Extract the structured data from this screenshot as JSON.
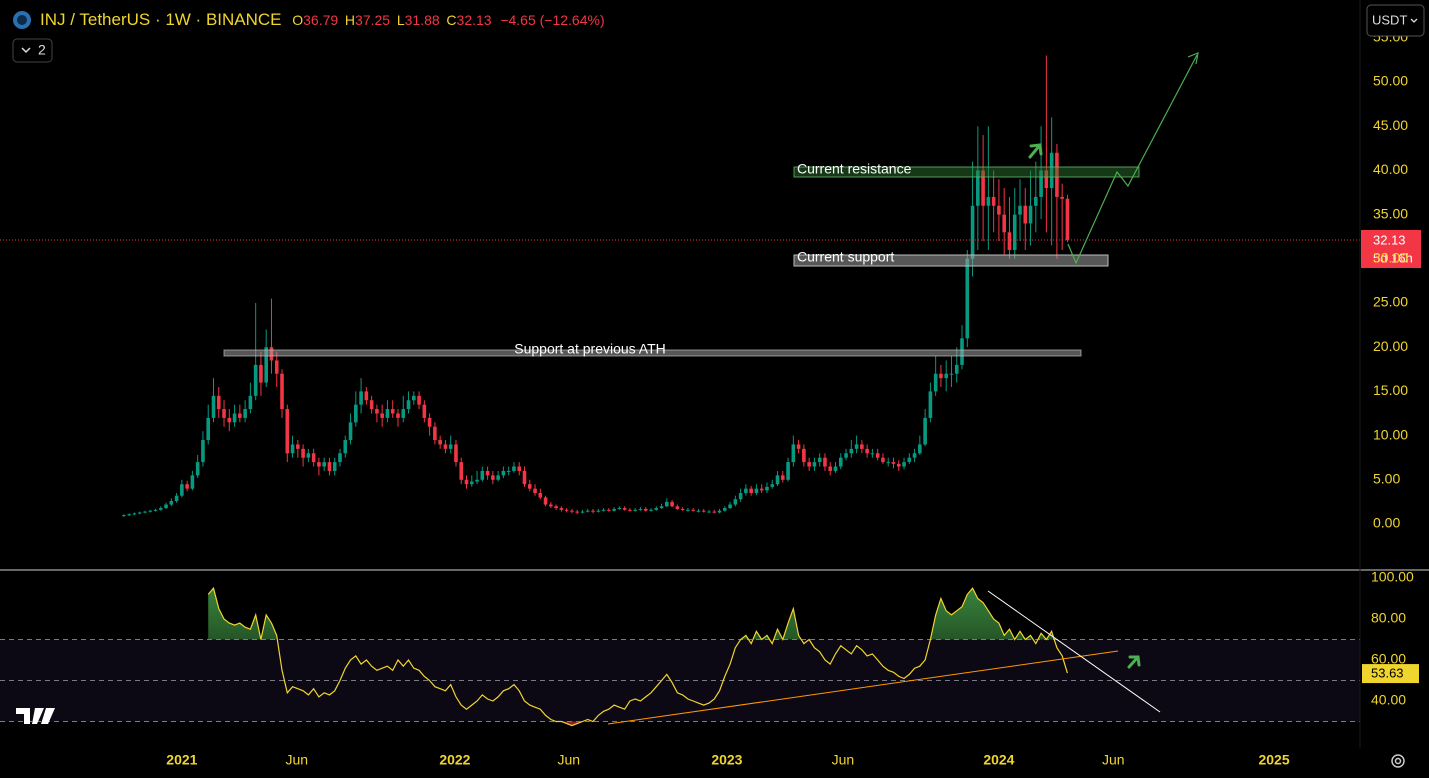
{
  "chart_data": {
    "type": "candlestick",
    "title": "INJ / TetherUS · 1W · BINANCE",
    "ohlc_prefixes": [
      "O",
      "H",
      "L",
      "C"
    ],
    "change_label": "−4.65 (−12.64%)",
    "currency": "USDT",
    "indicator_count": "2",
    "countdown": "5d 16h",
    "up_color": "#089981",
    "down_color": "#f23645",
    "xlim": [
      -23.5,
      234.5
    ],
    "xticks": [
      {
        "value": 11.0,
        "label": "2021"
      },
      {
        "value": 32.8,
        "label": "Jun"
      },
      {
        "value": 62.8,
        "label": "2022"
      },
      {
        "value": 84.4,
        "label": "Jun"
      },
      {
        "value": 114.4,
        "label": "2023"
      },
      {
        "value": 136.4,
        "label": "Jun"
      },
      {
        "value": 166.0,
        "label": "2024"
      },
      {
        "value": 187.7,
        "label": "Jun"
      },
      {
        "value": 218.2,
        "label": "2025"
      }
    ],
    "ylim": [
      -4.98,
      59.28
    ],
    "yticks": [
      {
        "value": 0,
        "label": "0.00"
      },
      {
        "value": 5,
        "label": "5.00"
      },
      {
        "value": 10,
        "label": "10.00"
      },
      {
        "value": 15,
        "label": "15.00"
      },
      {
        "value": 20,
        "label": "20.00"
      },
      {
        "value": 25,
        "label": "25.00"
      },
      {
        "value": 30,
        "label": "30.00"
      },
      {
        "value": 35,
        "label": "35.00"
      },
      {
        "value": 40,
        "label": "40.00"
      },
      {
        "value": 45,
        "label": "45.00"
      },
      {
        "value": 50,
        "label": "50.00"
      },
      {
        "value": 55,
        "label": "55.00"
      }
    ],
    "open": [
      0.9,
      1.0,
      1.1,
      1.2,
      1.3,
      1.4,
      1.5,
      1.6,
      1.8,
      2.2,
      2.6,
      3.2,
      4.5,
      4.0,
      5.5,
      7.0,
      9.5,
      12.0,
      14.5,
      13.0,
      12.0,
      11.5,
      12.5,
      12.0,
      13.0,
      14.5,
      18.0,
      16.0,
      20.0,
      18.5,
      17.0,
      13.0,
      8.0,
      9.0,
      8.5,
      7.5,
      8.0,
      7.0,
      6.5,
      7.0,
      6.0,
      7.0,
      8.0,
      9.5,
      11.5,
      13.5,
      15.0,
      14.0,
      13.0,
      12.5,
      12.0,
      13.0,
      12.5,
      12.0,
      13.0,
      14.0,
      14.5,
      13.5,
      12.0,
      11.0,
      9.5,
      9.0,
      8.5,
      9.0,
      7.0,
      5.0,
      4.5,
      4.8,
      5.0,
      6.0,
      5.5,
      5.0,
      5.5,
      6.0,
      6.0,
      6.5,
      6.0,
      4.5,
      4.0,
      3.5,
      3.0,
      2.2,
      2.0,
      1.8,
      1.6,
      1.5,
      1.4,
      1.3,
      1.4,
      1.5,
      1.4,
      1.5,
      1.6,
      1.5,
      1.7,
      1.8,
      1.6,
      1.5,
      1.6,
      1.7,
      1.5,
      1.6,
      1.8,
      2.0,
      2.5,
      2.0,
      1.7,
      1.6,
      1.6,
      1.5,
      1.5,
      1.4,
      1.4,
      1.3,
      1.5,
      1.8,
      2.2,
      2.8,
      3.5,
      4.0,
      3.5,
      4.0,
      3.8,
      4.2,
      4.5,
      5.5,
      5.0,
      7.0,
      9.0,
      8.5,
      7.0,
      6.5,
      7.0,
      7.5,
      6.5,
      6.0,
      6.5,
      7.5,
      8.0,
      8.5,
      9.0,
      8.5,
      8.0,
      8.0,
      7.5,
      7.0,
      7.0,
      6.8,
      6.5,
      7.0,
      7.5,
      8.0,
      9.0,
      12.0,
      15.0,
      17.0,
      16.5,
      17.0,
      17.0,
      18.0,
      21.0,
      30.0,
      36.0,
      40.0,
      36.0,
      37.0,
      36.0,
      35.0,
      33.0,
      31.0,
      35.0,
      36.0,
      34.0,
      36.0,
      37.0,
      40.0,
      38.0,
      42.0,
      37.0,
      36.79
    ],
    "high": [
      1.1,
      1.2,
      1.3,
      1.4,
      1.5,
      1.6,
      1.7,
      2.0,
      2.4,
      2.9,
      3.5,
      5.0,
      4.9,
      6.0,
      7.8,
      10.5,
      13.5,
      16.5,
      15.5,
      14.0,
      13.0,
      13.5,
      13.5,
      14.0,
      16.0,
      25.0,
      19.5,
      22.0,
      25.5,
      19.5,
      17.5,
      13.5,
      10.0,
      9.5,
      9.0,
      8.5,
      8.5,
      7.5,
      7.5,
      7.5,
      7.5,
      8.5,
      10.0,
      12.5,
      15.0,
      16.5,
      15.5,
      14.5,
      13.5,
      13.5,
      14.0,
      14.0,
      13.0,
      14.5,
      15.0,
      15.0,
      15.0,
      14.0,
      12.5,
      11.5,
      10.0,
      9.5,
      10.0,
      9.5,
      7.5,
      5.5,
      5.5,
      6.0,
      6.5,
      6.5,
      6.0,
      6.0,
      6.5,
      6.5,
      7.0,
      7.0,
      6.5,
      5.0,
      4.5,
      4.0,
      3.2,
      2.5,
      2.2,
      2.0,
      1.8,
      1.7,
      1.6,
      1.6,
      1.7,
      1.7,
      1.7,
      1.8,
      1.8,
      1.9,
      2.0,
      2.0,
      1.8,
      1.8,
      1.9,
      1.9,
      1.8,
      2.0,
      2.3,
      2.9,
      2.7,
      2.2,
      1.9,
      1.8,
      1.8,
      1.7,
      1.7,
      1.6,
      1.6,
      1.7,
      2.0,
      2.5,
      3.2,
      4.0,
      4.5,
      4.3,
      4.5,
      4.5,
      4.7,
      5.0,
      6.0,
      6.0,
      7.5,
      10.0,
      9.5,
      9.0,
      7.5,
      7.5,
      8.0,
      8.0,
      7.0,
      7.0,
      8.0,
      8.5,
      9.5,
      10.0,
      9.5,
      9.0,
      8.5,
      8.5,
      8.0,
      7.5,
      7.5,
      7.2,
      7.5,
      8.0,
      8.5,
      10.0,
      13.0,
      16.0,
      19.0,
      18.0,
      18.5,
      19.0,
      20.0,
      22.5,
      31.0,
      41.0,
      45.0,
      44.0,
      45.0,
      40.0,
      39.0,
      38.0,
      37.0,
      38.0,
      39.0,
      38.0,
      40.0,
      41.0,
      45.0,
      53.0,
      46.0,
      43.0,
      38.5,
      37.25
    ],
    "low": [
      0.8,
      0.9,
      1.0,
      1.1,
      1.2,
      1.3,
      1.4,
      1.5,
      1.7,
      2.0,
      2.4,
      3.0,
      3.7,
      3.8,
      5.2,
      6.5,
      9.0,
      11.5,
      12.0,
      11.0,
      10.5,
      11.0,
      11.5,
      11.5,
      12.5,
      14.0,
      14.5,
      15.5,
      17.0,
      15.5,
      12.0,
      7.0,
      7.5,
      7.5,
      6.5,
      7.0,
      6.5,
      5.5,
      6.0,
      5.5,
      5.5,
      6.5,
      7.5,
      9.0,
      11.0,
      12.5,
      13.5,
      12.5,
      11.5,
      11.0,
      11.5,
      12.0,
      11.0,
      11.5,
      12.5,
      13.5,
      13.0,
      11.5,
      10.0,
      9.0,
      8.5,
      8.0,
      8.0,
      6.5,
      4.5,
      4.0,
      4.2,
      4.5,
      4.8,
      5.0,
      4.5,
      4.8,
      5.2,
      5.5,
      5.8,
      5.5,
      4.2,
      3.7,
      3.2,
      2.8,
      2.0,
      1.8,
      1.6,
      1.4,
      1.3,
      1.2,
      1.1,
      1.2,
      1.3,
      1.2,
      1.3,
      1.4,
      1.4,
      1.4,
      1.6,
      1.5,
      1.4,
      1.4,
      1.5,
      1.4,
      1.4,
      1.5,
      1.7,
      1.9,
      1.9,
      1.6,
      1.5,
      1.4,
      1.4,
      1.3,
      1.3,
      1.3,
      1.2,
      1.2,
      1.4,
      1.7,
      2.0,
      2.5,
      3.2,
      3.2,
      3.3,
      3.5,
      3.5,
      4.0,
      4.3,
      4.7,
      4.8,
      6.5,
      8.0,
      6.5,
      6.0,
      6.0,
      6.5,
      6.0,
      5.5,
      5.8,
      6.2,
      7.2,
      7.5,
      8.0,
      8.0,
      7.5,
      7.5,
      7.2,
      6.8,
      6.5,
      6.3,
      6.0,
      6.2,
      6.8,
      7.0,
      7.8,
      8.8,
      11.5,
      14.5,
      15.5,
      15.0,
      15.5,
      16.0,
      17.5,
      20.0,
      28.0,
      31.0,
      32.0,
      31.0,
      33.0,
      32.0,
      30.5,
      30.0,
      30.0,
      32.0,
      31.0,
      31.5,
      33.0,
      34.5,
      33.0,
      31.5,
      30.0,
      31.0,
      31.88
    ],
    "close": [
      1.0,
      1.1,
      1.2,
      1.3,
      1.4,
      1.5,
      1.6,
      1.8,
      2.2,
      2.6,
      3.2,
      4.5,
      4.0,
      5.5,
      7.0,
      9.5,
      12.0,
      14.5,
      13.0,
      12.0,
      11.5,
      12.5,
      12.0,
      13.0,
      14.5,
      18.0,
      16.0,
      20.0,
      18.5,
      17.0,
      13.0,
      8.0,
      9.0,
      8.5,
      7.5,
      8.0,
      7.0,
      6.5,
      7.0,
      6.0,
      7.0,
      8.0,
      9.5,
      11.5,
      13.5,
      15.0,
      14.0,
      13.0,
      12.5,
      12.0,
      13.0,
      12.5,
      12.0,
      13.0,
      14.0,
      14.5,
      13.5,
      12.0,
      11.0,
      9.5,
      9.0,
      8.5,
      9.0,
      7.0,
      5.0,
      4.5,
      4.8,
      5.0,
      6.0,
      5.5,
      5.0,
      5.5,
      6.0,
      6.0,
      6.5,
      6.0,
      4.5,
      4.0,
      3.5,
      3.0,
      2.2,
      2.0,
      1.8,
      1.6,
      1.5,
      1.4,
      1.3,
      1.4,
      1.5,
      1.4,
      1.5,
      1.6,
      1.5,
      1.7,
      1.8,
      1.6,
      1.5,
      1.6,
      1.7,
      1.5,
      1.6,
      1.8,
      2.0,
      2.5,
      2.0,
      1.7,
      1.6,
      1.6,
      1.5,
      1.5,
      1.4,
      1.4,
      1.3,
      1.5,
      1.8,
      2.2,
      2.8,
      3.5,
      4.0,
      3.5,
      4.0,
      3.8,
      4.2,
      4.5,
      5.5,
      5.0,
      7.0,
      9.0,
      8.5,
      7.0,
      6.5,
      7.0,
      7.5,
      6.5,
      6.0,
      6.5,
      7.5,
      8.0,
      8.5,
      9.0,
      8.5,
      8.0,
      8.0,
      7.5,
      7.0,
      7.0,
      6.8,
      6.5,
      7.0,
      7.5,
      8.0,
      9.0,
      12.0,
      15.0,
      17.0,
      16.5,
      17.0,
      17.0,
      18.0,
      21.0,
      30.0,
      36.0,
      40.0,
      36.0,
      37.0,
      36.0,
      35.0,
      33.0,
      31.0,
      35.0,
      36.0,
      34.0,
      36.0,
      37.0,
      40.0,
      38.0,
      42.0,
      37.0,
      36.79,
      32.13
    ],
    "annotations": [
      {
        "text": "Current resistance"
      },
      {
        "text": "Current support"
      },
      {
        "text": "Support at previous ATH"
      }
    ],
    "rsi": {
      "color": "#f0d52f",
      "ylim": [
        17.1,
        103.4
      ],
      "yticks": [
        {
          "value": 40,
          "label": "40.00"
        },
        {
          "value": 60,
          "label": "60.00"
        },
        {
          "value": 80,
          "label": "80.00"
        },
        {
          "value": 100,
          "label": "100.00"
        }
      ],
      "levels": [
        70,
        50,
        30
      ],
      "value_label": "53.63",
      "values": [
        null,
        null,
        null,
        null,
        null,
        null,
        null,
        null,
        null,
        null,
        null,
        null,
        null,
        null,
        null,
        null,
        92,
        95,
        85,
        80,
        78,
        77,
        78,
        76,
        75,
        82,
        70,
        82,
        78,
        72,
        55,
        44,
        47,
        46,
        45,
        43,
        46,
        42,
        44,
        43,
        45,
        50,
        56,
        60,
        62,
        58,
        60,
        57,
        55,
        56,
        57,
        55,
        60,
        57,
        60,
        56,
        55,
        52,
        50,
        47,
        46,
        45,
        48,
        42,
        38,
        36,
        38,
        40,
        43,
        41,
        40,
        42,
        45,
        46,
        48,
        45,
        40,
        38,
        37,
        36,
        33,
        31,
        30,
        30,
        29,
        28,
        29,
        30,
        31,
        30,
        33,
        35,
        36,
        38,
        37,
        36,
        40,
        41,
        40,
        42,
        44,
        47,
        50,
        53,
        49,
        44,
        43,
        41,
        40,
        39,
        38,
        39,
        41,
        45,
        52,
        58,
        66,
        70,
        72,
        68,
        74,
        70,
        72,
        68,
        75,
        70,
        78,
        85,
        72,
        68,
        70,
        66,
        64,
        60,
        58,
        63,
        67,
        65,
        63,
        67,
        65,
        62,
        63,
        60,
        57,
        55,
        54,
        52,
        51,
        53,
        56,
        57,
        60,
        70,
        82,
        90,
        84,
        82,
        84,
        86,
        92,
        95,
        90,
        88,
        84,
        80,
        78,
        72,
        75,
        70,
        74,
        70,
        72,
        68,
        73,
        70,
        74,
        66,
        62,
        53.63
      ]
    }
  }
}
